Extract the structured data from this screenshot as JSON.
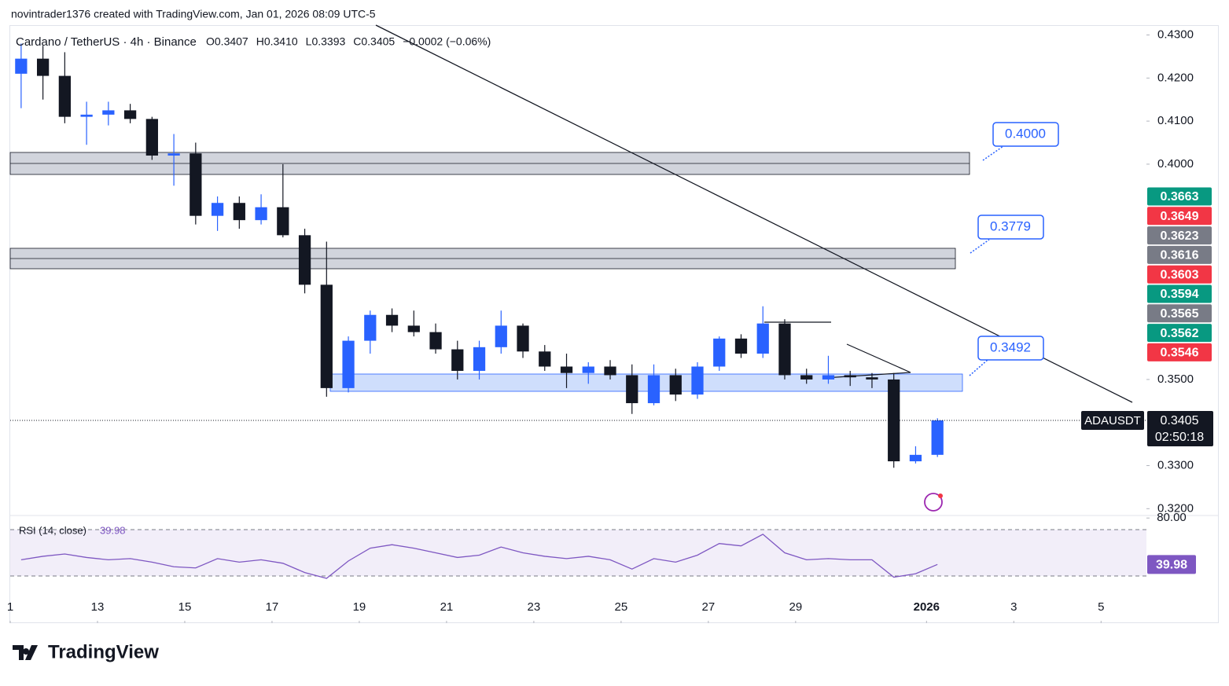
{
  "header": {
    "attribution": "novintrader1376 created with TradingView.com, Jan 01, 2026 08:09 UTC-5"
  },
  "footer": {
    "logo": "TradingView"
  },
  "chart_data": {
    "type": "candlestick",
    "title": "Cardano / TetherUS · 4h · Binance",
    "legend_items": [
      "O0.3407",
      "H0.3410",
      "L0.3393",
      "C0.3405",
      "−0.0002 (−0.06%)"
    ],
    "up_color": "#2962ff",
    "down_color": "#131722",
    "x": [
      0.25,
      0.75,
      1.25,
      1.75,
      2.25,
      2.75,
      3.25,
      3.75,
      4.25,
      4.75,
      5.25,
      5.75,
      6.25,
      6.75,
      7.25,
      7.75,
      8.25,
      8.75,
      9.25,
      9.75,
      10.25,
      10.75,
      11.25,
      11.75,
      12.25,
      12.75,
      13.25,
      13.75,
      14.25,
      14.75,
      15.25,
      15.75,
      16.25,
      16.75,
      17.25,
      17.75,
      18.25,
      18.75,
      19.25,
      19.75,
      20.25,
      20.75,
      21.25
    ],
    "open": [
      0.421,
      0.4245,
      0.4205,
      0.411,
      0.4115,
      0.4125,
      0.4105,
      0.402,
      0.4025,
      0.388,
      0.391,
      0.387,
      0.39,
      0.3835,
      0.372,
      0.348,
      0.359,
      0.365,
      0.3625,
      0.361,
      0.357,
      0.352,
      0.3575,
      0.3625,
      0.3565,
      0.353,
      0.3515,
      0.353,
      0.351,
      0.3445,
      0.351,
      0.3465,
      0.353,
      0.3595,
      0.356,
      0.363,
      0.351,
      0.35,
      0.351,
      0.3505,
      0.35,
      0.331,
      0.3325
    ],
    "high": [
      0.428,
      0.4275,
      0.426,
      0.4145,
      0.4145,
      0.414,
      0.411,
      0.407,
      0.405,
      0.3925,
      0.3925,
      0.393,
      0.4,
      0.385,
      0.382,
      0.36,
      0.366,
      0.3665,
      0.366,
      0.363,
      0.359,
      0.359,
      0.366,
      0.363,
      0.358,
      0.356,
      0.354,
      0.3545,
      0.3535,
      0.3535,
      0.3525,
      0.354,
      0.36,
      0.3605,
      0.367,
      0.364,
      0.3525,
      0.3555,
      0.352,
      0.3515,
      0.3515,
      0.3345,
      0.341
    ],
    "low": [
      0.413,
      0.415,
      0.4095,
      0.4045,
      0.409,
      0.4095,
      0.401,
      0.395,
      0.386,
      0.3845,
      0.385,
      0.386,
      0.383,
      0.37,
      0.346,
      0.347,
      0.356,
      0.361,
      0.36,
      0.356,
      0.35,
      0.35,
      0.356,
      0.355,
      0.352,
      0.348,
      0.349,
      0.35,
      0.342,
      0.344,
      0.345,
      0.3455,
      0.352,
      0.355,
      0.355,
      0.35,
      0.349,
      0.349,
      0.3485,
      0.348,
      0.3295,
      0.3305,
      0.332
    ],
    "close": [
      0.4245,
      0.4205,
      0.411,
      0.4115,
      0.4125,
      0.4105,
      0.402,
      0.4025,
      0.388,
      0.391,
      0.387,
      0.39,
      0.3835,
      0.372,
      0.348,
      0.359,
      0.365,
      0.3625,
      0.361,
      0.357,
      0.352,
      0.3575,
      0.3625,
      0.3565,
      0.353,
      0.3515,
      0.353,
      0.351,
      0.3445,
      0.351,
      0.3465,
      0.353,
      0.3595,
      0.356,
      0.363,
      0.351,
      0.35,
      0.351,
      0.3505,
      0.35,
      0.331,
      0.3325,
      0.3405
    ],
    "xlim": [
      0,
      26.04
    ],
    "xticks": [
      {
        "value": 0,
        "label": "1"
      },
      {
        "value": 2,
        "label": "13"
      },
      {
        "value": 4,
        "label": "15"
      },
      {
        "value": 6,
        "label": "17"
      },
      {
        "value": 8,
        "label": "19"
      },
      {
        "value": 10,
        "label": "21"
      },
      {
        "value": 12,
        "label": "23"
      },
      {
        "value": 14,
        "label": "25"
      },
      {
        "value": 16,
        "label": "27"
      },
      {
        "value": 18,
        "label": "29"
      },
      {
        "value": 21,
        "label": "2026"
      },
      {
        "value": 23,
        "label": "3"
      },
      {
        "value": 25,
        "label": "5"
      }
    ],
    "ylim": [
      0.3186,
      0.4321
    ],
    "yticks": [
      {
        "value": 0.32,
        "label": "0.3200"
      },
      {
        "value": 0.33,
        "label": "0.3300"
      },
      {
        "value": 0.35,
        "label": "0.3500"
      },
      {
        "value": 0.4,
        "label": "0.4000"
      },
      {
        "value": 0.41,
        "label": "0.4100"
      },
      {
        "value": 0.42,
        "label": "0.4200"
      },
      {
        "value": 0.43,
        "label": "0.4300"
      }
    ],
    "symbol": "ADAUSDT",
    "last_price": 0.3405,
    "countdown": "02:50:18",
    "price_tags": [
      {
        "value": 0.3663,
        "color": "#089981"
      },
      {
        "value": 0.3649,
        "color": "#f23645"
      },
      {
        "value": 0.3623,
        "color": "#787b86"
      },
      {
        "value": 0.3616,
        "color": "#787b86"
      },
      {
        "value": 0.3603,
        "color": "#f23645"
      },
      {
        "value": 0.3594,
        "color": "#089981"
      },
      {
        "value": 0.3565,
        "color": "#787b86"
      },
      {
        "value": 0.3562,
        "color": "#089981"
      },
      {
        "value": 0.3546,
        "color": "#f23645"
      }
    ],
    "zone_labels": [
      "0.4000",
      "0.3779",
      "0.3492"
    ],
    "rsi": {
      "title": "RSI (14, close)",
      "value": 39.98,
      "color": "#7e57c2",
      "values": [
        44,
        47,
        49,
        46,
        44,
        45,
        42,
        38,
        37,
        45,
        42,
        44,
        41,
        33,
        28,
        43,
        54,
        57,
        54,
        50,
        46,
        48,
        55,
        50,
        47,
        45,
        47,
        44,
        36,
        45,
        42,
        48,
        58,
        56,
        66,
        50,
        44,
        45,
        44,
        44,
        29,
        32,
        39.98
      ],
      "ylim": [
        25.3,
        81.5
      ],
      "yticks": [
        {
          "value": 80,
          "label": "80.00"
        }
      ],
      "levels": [
        30,
        70
      ]
    }
  }
}
